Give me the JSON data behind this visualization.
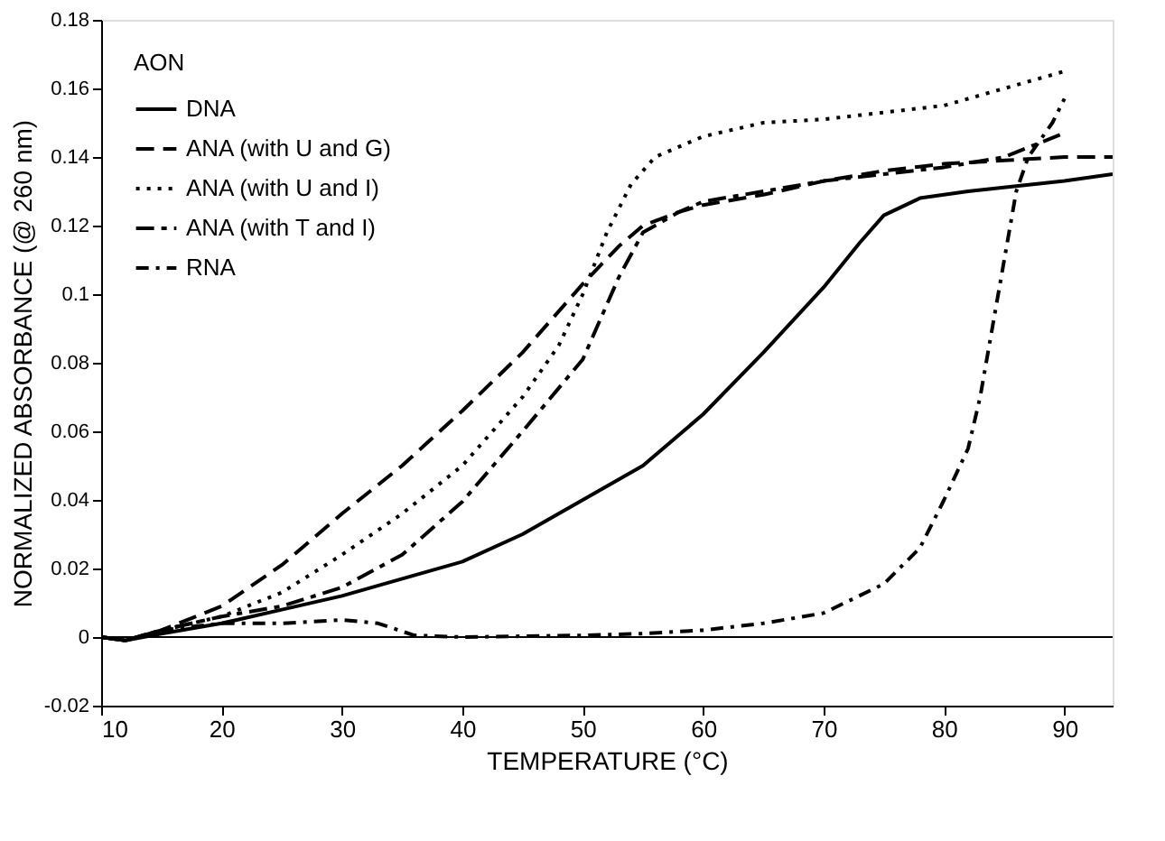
{
  "chart_data": {
    "type": "line",
    "xlabel": "TEMPERATURE (°C)",
    "ylabel": "NORMALIZED ABSORBANCE (@ 260 nm)",
    "legend_title": "AON",
    "xlim": [
      10,
      94
    ],
    "ylim": [
      -0.02,
      0.18
    ],
    "xticks": [
      10,
      20,
      30,
      40,
      50,
      60,
      70,
      80,
      90
    ],
    "yticks": [
      -0.02,
      0,
      0.02,
      0.04,
      0.06,
      0.08,
      0.1,
      0.12,
      0.14,
      0.16,
      0.18
    ],
    "grid": false,
    "legend": "top left",
    "marker": "none",
    "ref_lines": [
      {
        "axis": "y",
        "value": 0,
        "color": "#000000"
      }
    ],
    "series": [
      {
        "name": "DNA",
        "color": "#000000",
        "line_style": "solid",
        "x": [
          10,
          12,
          15,
          20,
          25,
          30,
          35,
          40,
          45,
          50,
          55,
          60,
          65,
          70,
          73,
          75,
          78,
          82,
          90,
          94
        ],
        "values": [
          0,
          -0.001,
          0.001,
          0.004,
          0.008,
          0.012,
          0.017,
          0.022,
          0.03,
          0.04,
          0.05,
          0.065,
          0.083,
          0.102,
          0.115,
          0.123,
          0.128,
          0.13,
          0.133,
          0.135
        ]
      },
      {
        "name": "ANA (with U and G)",
        "color": "#000000",
        "line_style": "dashed",
        "x": [
          10,
          12,
          15,
          20,
          25,
          30,
          35,
          40,
          45,
          50,
          53,
          55,
          58,
          60,
          65,
          70,
          75,
          80,
          85,
          90,
          94
        ],
        "values": [
          0,
          -0.001,
          0.002,
          0.009,
          0.021,
          0.036,
          0.05,
          0.066,
          0.083,
          0.103,
          0.114,
          0.12,
          0.124,
          0.126,
          0.129,
          0.133,
          0.136,
          0.138,
          0.139,
          0.14,
          0.14
        ]
      },
      {
        "name": "ANA (with U and I)",
        "color": "#000000",
        "line_style": "dotted",
        "x": [
          10,
          12,
          15,
          20,
          25,
          30,
          35,
          40,
          45,
          48,
          50,
          52,
          54,
          56,
          60,
          65,
          70,
          75,
          80,
          85,
          90
        ],
        "values": [
          0,
          -0.001,
          0.002,
          0.006,
          0.013,
          0.024,
          0.036,
          0.05,
          0.07,
          0.085,
          0.1,
          0.118,
          0.132,
          0.14,
          0.146,
          0.15,
          0.151,
          0.153,
          0.155,
          0.16,
          0.165
        ]
      },
      {
        "name": "ANA (with T and I)",
        "color": "#000000",
        "line_style": "dashed",
        "x": [
          10,
          12,
          15,
          20,
          25,
          30,
          35,
          40,
          45,
          50,
          53,
          55,
          58,
          60,
          70,
          80,
          85,
          90
        ],
        "values": [
          0,
          -0.001,
          0.002,
          0.006,
          0.009,
          0.0145,
          0.024,
          0.0395,
          0.06,
          0.081,
          0.105,
          0.118,
          0.124,
          0.127,
          0.133,
          0.137,
          0.14,
          0.147
        ]
      },
      {
        "name": "RNA",
        "color": "#000000",
        "line_style": "dashed",
        "x": [
          10,
          12,
          15,
          20,
          25,
          30,
          33,
          36,
          40,
          50,
          55,
          60,
          65,
          70,
          75,
          78,
          80,
          82,
          83,
          84,
          85,
          86,
          87,
          88,
          89,
          90
        ],
        "values": [
          0,
          -0.001,
          0.002,
          0.004,
          0.004,
          0.005,
          0.004,
          0.0005,
          0,
          0.0005,
          0.001,
          0.002,
          0.004,
          0.007,
          0.0155,
          0.026,
          0.04,
          0.055,
          0.07,
          0.09,
          0.11,
          0.13,
          0.14,
          0.145,
          0.15,
          0.157
        ]
      }
    ]
  }
}
